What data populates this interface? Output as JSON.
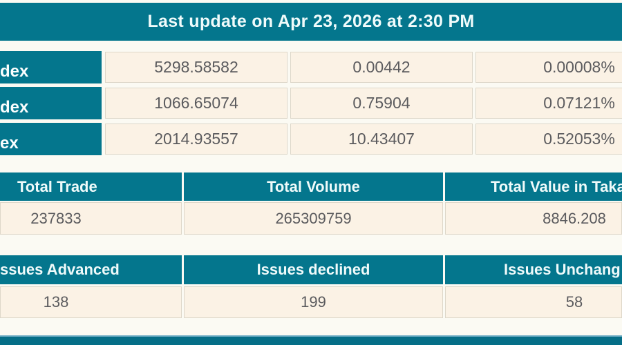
{
  "colors": {
    "teal": "#04768d",
    "cream": "#fbf2e5"
  },
  "header": {
    "title": "Last update on Apr 23, 2026 at 2:30 PM"
  },
  "index_table": {
    "rows": [
      {
        "label": "dex",
        "value": "5298.58582",
        "change": "0.00442",
        "percent": "0.00008%"
      },
      {
        "label": "dex",
        "value": "1066.65074",
        "change": "0.75904",
        "percent": "0.07121%"
      },
      {
        "label": "ex",
        "value": "2014.93557",
        "change": "10.43407",
        "percent": "0.52053%"
      }
    ]
  },
  "totals_table": {
    "headers": {
      "trade": "Total Trade",
      "volume": "Total Volume",
      "value": "Total Value in Taka"
    },
    "values": {
      "trade": "237833",
      "volume": "265309759",
      "value": "8846.208"
    }
  },
  "issues_table": {
    "headers": {
      "advanced": "ssues Advanced",
      "declined": "Issues declined",
      "unchanged": "Issues Unchang"
    },
    "values": {
      "advanced": "138",
      "declined": "199",
      "unchanged": "58"
    }
  }
}
